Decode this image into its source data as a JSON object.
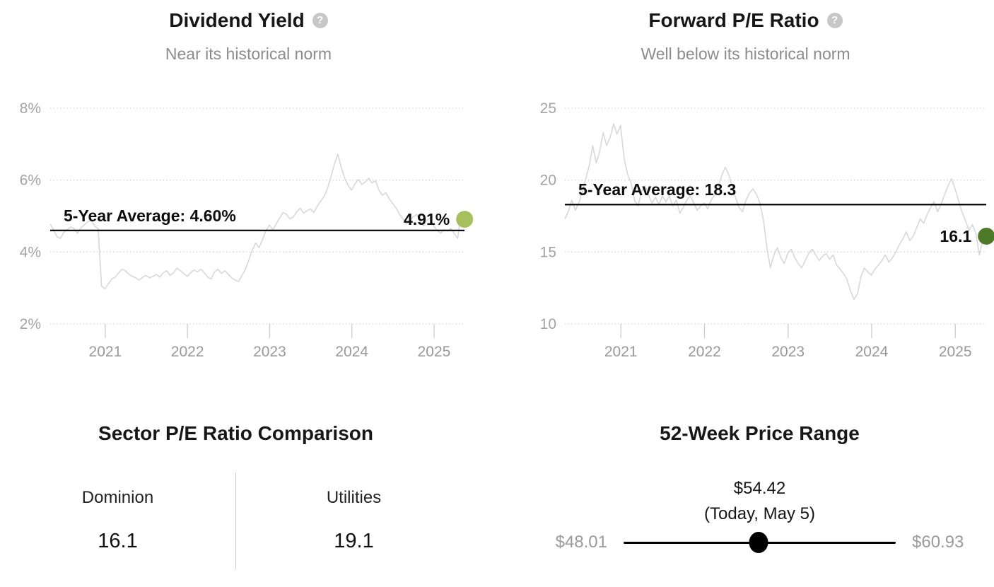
{
  "chart_data": [
    {
      "type": "line",
      "title": "Dividend Yield",
      "help_glyph": "?",
      "subtitle": "Near its historical norm",
      "ylim": [
        2,
        8
      ],
      "xlim": [
        2020.33,
        2025.37
      ],
      "y_ticks": [
        {
          "value": 8,
          "label": "8%"
        },
        {
          "value": 6,
          "label": "6%"
        },
        {
          "value": 4,
          "label": "4%"
        },
        {
          "value": 2,
          "label": "2%"
        }
      ],
      "x_ticks": [
        {
          "value": 2021,
          "label": "2021"
        },
        {
          "value": 2022,
          "label": "2022"
        },
        {
          "value": 2023,
          "label": "2023"
        },
        {
          "value": 2024,
          "label": "2024"
        },
        {
          "value": 2025,
          "label": "2025"
        }
      ],
      "average": {
        "value": 4.6,
        "label": "5-Year Average: 4.60%"
      },
      "current": {
        "value": 4.91,
        "label": "4.91%",
        "marker_color": "#a6c05e"
      },
      "line_color": "#d8d8d8",
      "series": {
        "x_start": 2020.33,
        "x_step": 0.0416667,
        "values": [
          4.78,
          4.62,
          4.42,
          4.38,
          4.55,
          4.62,
          4.7,
          4.65,
          4.52,
          4.68,
          4.75,
          4.85,
          4.88,
          4.72,
          4.65,
          3.05,
          2.98,
          3.12,
          3.25,
          3.3,
          3.42,
          3.52,
          3.48,
          3.38,
          3.32,
          3.28,
          3.22,
          3.3,
          3.35,
          3.28,
          3.32,
          3.38,
          3.3,
          3.42,
          3.48,
          3.35,
          3.42,
          3.55,
          3.48,
          3.4,
          3.32,
          3.42,
          3.5,
          3.45,
          3.52,
          3.42,
          3.3,
          3.25,
          3.45,
          3.52,
          3.4,
          3.48,
          3.38,
          3.28,
          3.22,
          3.18,
          3.35,
          3.52,
          3.78,
          4.05,
          4.25,
          4.12,
          4.35,
          4.6,
          4.75,
          4.62,
          4.78,
          4.95,
          5.1,
          5.05,
          4.92,
          4.98,
          5.12,
          5.22,
          5.08,
          5.15,
          5.2,
          5.1,
          5.28,
          5.42,
          5.55,
          5.78,
          6.1,
          6.45,
          6.72,
          6.35,
          6.05,
          5.85,
          5.72,
          5.9,
          6.02,
          5.88,
          5.95,
          6.05,
          5.92,
          5.98,
          5.72,
          5.58,
          5.65,
          5.48,
          5.35,
          5.22,
          5.05,
          4.92,
          4.78,
          4.88,
          4.98,
          5.05,
          4.85,
          4.72,
          4.88,
          4.95,
          4.72,
          4.6,
          4.52,
          4.62,
          4.58,
          4.66,
          4.5,
          4.38,
          5.1,
          4.91
        ]
      }
    },
    {
      "type": "line",
      "title": "Forward P/E Ratio",
      "help_glyph": "?",
      "subtitle": "Well below its historical norm",
      "ylim": [
        10,
        25
      ],
      "xlim": [
        2020.33,
        2025.37
      ],
      "y_ticks": [
        {
          "value": 25,
          "label": "25"
        },
        {
          "value": 20,
          "label": "20"
        },
        {
          "value": 15,
          "label": "15"
        },
        {
          "value": 10,
          "label": "10"
        }
      ],
      "x_ticks": [
        {
          "value": 2021,
          "label": "2021"
        },
        {
          "value": 2022,
          "label": "2022"
        },
        {
          "value": 2023,
          "label": "2023"
        },
        {
          "value": 2024,
          "label": "2024"
        },
        {
          "value": 2025,
          "label": "2025"
        }
      ],
      "average": {
        "value": 18.3,
        "label": "5-Year Average: 18.3"
      },
      "current": {
        "value": 16.1,
        "label": "16.1",
        "marker_color": "#4d7a28"
      },
      "line_color": "#d8d8d8",
      "series": {
        "x_start": 2020.33,
        "x_step": 0.0416667,
        "values": [
          17.3,
          17.8,
          18.6,
          17.9,
          18.4,
          19.2,
          20.1,
          21.0,
          22.4,
          21.2,
          22.0,
          23.3,
          22.4,
          23.0,
          23.9,
          23.2,
          23.8,
          21.5,
          20.4,
          19.8,
          18.6,
          18.2,
          19.2,
          19.6,
          19.0,
          18.4,
          18.8,
          18.3,
          18.9,
          18.5,
          18.9,
          18.2,
          18.6,
          17.7,
          18.1,
          18.6,
          18.9,
          18.4,
          17.9,
          18.2,
          18.4,
          18.0,
          18.6,
          19.0,
          19.5,
          20.3,
          20.9,
          20.4,
          19.6,
          18.8,
          18.1,
          17.8,
          18.6,
          19.1,
          19.4,
          19.0,
          18.4,
          17.2,
          15.3,
          13.9,
          14.8,
          15.3,
          14.6,
          14.2,
          14.9,
          15.2,
          14.6,
          14.2,
          13.9,
          14.4,
          14.9,
          15.2,
          14.8,
          14.4,
          14.7,
          14.9,
          14.5,
          14.8,
          14.1,
          13.8,
          13.5,
          13.1,
          12.3,
          11.7,
          12.1,
          13.3,
          13.9,
          13.6,
          13.4,
          13.8,
          14.1,
          14.4,
          14.8,
          14.3,
          14.6,
          15.0,
          15.5,
          15.9,
          16.4,
          15.8,
          16.1,
          16.7,
          17.3,
          17.0,
          17.6,
          18.1,
          18.5,
          17.8,
          18.3,
          19.0,
          19.6,
          20.1,
          19.4,
          18.6,
          17.8,
          17.2,
          16.5,
          16.9,
          16.3,
          14.8,
          15.9,
          16.1
        ]
      }
    }
  ],
  "sector_comparison": {
    "title": "Sector P/E Ratio Comparison",
    "items": [
      {
        "name": "Dominion",
        "value": "16.1"
      },
      {
        "name": "Utilities",
        "value": "19.1"
      }
    ]
  },
  "price_range": {
    "title": "52-Week Price Range",
    "current_price": "$54.42",
    "current_note": "(Today, May 5)",
    "low": "$48.01",
    "high": "$60.93"
  }
}
